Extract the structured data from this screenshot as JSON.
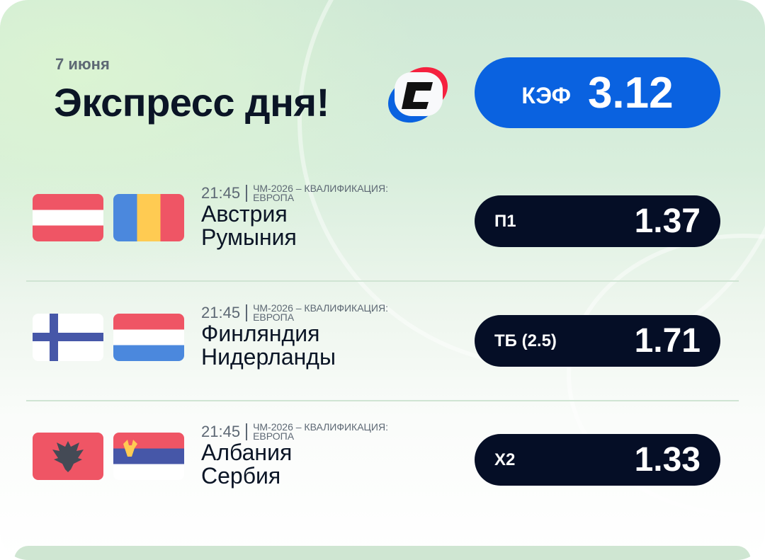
{
  "header": {
    "date": "7 июня",
    "title": "Экспресс дня!",
    "kef_label": "КЭФ",
    "kef_value": "3.12"
  },
  "matches": [
    {
      "time": "21:45",
      "league": "ЧМ-2026 – квалификация:",
      "league2": "Европа",
      "home": "Австрия",
      "away": "Румыния",
      "bet": "П1",
      "odds": "1.37",
      "home_flag": "austria-flag",
      "away_flag": "romania-flag"
    },
    {
      "time": "21:45",
      "league": "ЧМ-2026 – квалификация:",
      "league2": "Европа",
      "home": "Финляндия",
      "away": "Нидерланды",
      "bet": "ТБ (2.5)",
      "odds": "1.71",
      "home_flag": "finland-flag",
      "away_flag": "netherlands-flag"
    },
    {
      "time": "21:45",
      "league": "ЧМ-2026 – квалификация:",
      "league2": "Европа",
      "home": "Албания",
      "away": "Сербия",
      "bet": "Х2",
      "odds": "1.33",
      "home_flag": "albania-flag",
      "away_flag": "serbia-flag"
    }
  ],
  "colors": {
    "accent": "#0a62e0",
    "pill": "#050e26",
    "red": "#ef5565",
    "blue": "#4b88dd",
    "yellow": "#ffcb52",
    "navy": "#4657a8"
  }
}
